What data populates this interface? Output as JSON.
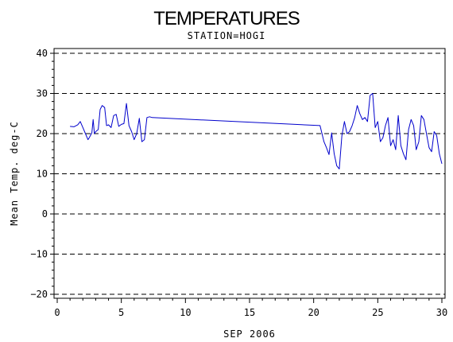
{
  "chart_data": {
    "type": "line",
    "title": "TEMPERATURES",
    "subtitle": "STATION=HOGI",
    "xlabel": "SEP 2006",
    "ylabel": "Mean Temp. deg-C",
    "xlim": [
      0,
      30
    ],
    "ylim": [
      -20,
      40
    ],
    "xticks": [
      0,
      5,
      10,
      15,
      20,
      25,
      30
    ],
    "yticks": [
      -20,
      -10,
      0,
      10,
      20,
      30,
      40
    ],
    "grid": "horizontal dashed",
    "line_color": "#0000cc",
    "series": [
      {
        "x": [
          1.0,
          1.3,
          1.6,
          1.8,
          2.0,
          2.2,
          2.4,
          2.5,
          2.7,
          2.8,
          2.9,
          3.0,
          3.2,
          3.35,
          3.5,
          3.7,
          3.85,
          4.0,
          4.2,
          4.4,
          4.6,
          4.8,
          5.0,
          5.2,
          5.4,
          5.6,
          5.8,
          6.0,
          6.2,
          6.4,
          6.6,
          6.8,
          7.0,
          7.2,
          7.4,
          20.5,
          20.8,
          21.0,
          21.2,
          21.4,
          21.6,
          21.8,
          22.0,
          22.2,
          22.4,
          22.6,
          22.8,
          23.0,
          23.2,
          23.4,
          23.6,
          23.8,
          24.0,
          24.2,
          24.4,
          24.6,
          24.8,
          25.0,
          25.2,
          25.4,
          25.6,
          25.8,
          26.0,
          26.2,
          26.4,
          26.6,
          26.8,
          27.0,
          27.2,
          27.4,
          27.6,
          27.8,
          28.0,
          28.2,
          28.4,
          28.6,
          28.8,
          29.0,
          29.2,
          29.4,
          29.6,
          29.8,
          30.0
        ],
        "y": [
          21.8,
          21.7,
          22.2,
          23.0,
          21.5,
          20.0,
          18.5,
          19.0,
          20.2,
          23.5,
          20.0,
          20.5,
          21.0,
          26.0,
          27.0,
          26.5,
          22.0,
          22.2,
          21.5,
          24.5,
          24.8,
          21.8,
          22.3,
          22.5,
          27.5,
          22.0,
          20.5,
          18.5,
          20.0,
          23.8,
          18.0,
          18.5,
          24.0,
          24.2,
          24.0,
          22.0,
          18.0,
          16.5,
          14.8,
          20.2,
          15.0,
          12.0,
          11.2,
          19.5,
          23.0,
          20.0,
          20.5,
          22.0,
          24.0,
          27.0,
          25.0,
          23.5,
          24.0,
          23.0,
          29.5,
          30.0,
          21.5,
          23.0,
          18.0,
          19.0,
          22.0,
          24.0,
          17.0,
          18.5,
          16.0,
          24.5,
          17.0,
          15.0,
          13.5,
          21.0,
          23.5,
          22.0,
          16.0,
          18.0,
          24.5,
          23.5,
          20.0,
          16.5,
          15.5,
          20.5,
          19.5,
          15.0,
          12.5
        ]
      }
    ]
  }
}
